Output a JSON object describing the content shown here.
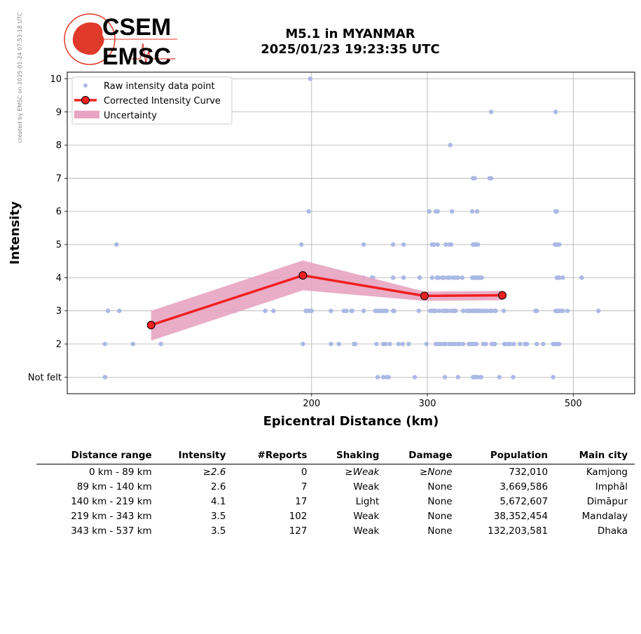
{
  "watermark": "created by EMSC on 2025-01-24 07:53:18 UTC",
  "logo": {
    "line1": "CSEM",
    "line2": "EMSC"
  },
  "title": {
    "line1": "M5.1 in MYANMAR",
    "line2": "2025/01/23 19:23:35 UTC"
  },
  "colors": {
    "raw": "#aab8e4",
    "curve": "#f02020",
    "uncertainty": "#e8a4c2",
    "logo_red": "#e03a2a"
  },
  "chart_data": {
    "type": "scatter",
    "xlabel": "Epicentral Distance (km)",
    "ylabel": "Intensity",
    "x_scale": "log",
    "xlim": [
      85,
      620
    ],
    "ylim": [
      0.5,
      10.2
    ],
    "xticks": [
      200,
      300,
      500
    ],
    "yticks": [
      1,
      2,
      3,
      4,
      5,
      6,
      7,
      8,
      9,
      10
    ],
    "ytick_labels": [
      "Not felt",
      "2",
      "3",
      "4",
      "5",
      "6",
      "7",
      "8",
      "9",
      "10"
    ],
    "grid": true,
    "legend_position": "top-left",
    "legend": [
      "Raw intensity data point",
      "Corrected Intensity Curve",
      "Uncertainty"
    ],
    "raw_points": [
      [
        199,
        10
      ],
      [
        375,
        9
      ],
      [
        470,
        9
      ],
      [
        325,
        8
      ],
      [
        352,
        7
      ],
      [
        354,
        7
      ],
      [
        373,
        7
      ],
      [
        375,
        7
      ],
      [
        198,
        6
      ],
      [
        302,
        6
      ],
      [
        309,
        6
      ],
      [
        311,
        6
      ],
      [
        327,
        6
      ],
      [
        351,
        6
      ],
      [
        357,
        6
      ],
      [
        470,
        6
      ],
      [
        472,
        6
      ],
      [
        101,
        5
      ],
      [
        193,
        5
      ],
      [
        240,
        5
      ],
      [
        266,
        5
      ],
      [
        276,
        5
      ],
      [
        305,
        5
      ],
      [
        307,
        5
      ],
      [
        311,
        5
      ],
      [
        320,
        5
      ],
      [
        324,
        5
      ],
      [
        326,
        5
      ],
      [
        352,
        5
      ],
      [
        354,
        5
      ],
      [
        356,
        5
      ],
      [
        358,
        5
      ],
      [
        469,
        5
      ],
      [
        471,
        5
      ],
      [
        474,
        5
      ],
      [
        476,
        5
      ],
      [
        240,
        4
      ],
      [
        247,
        4
      ],
      [
        248,
        4
      ],
      [
        266,
        4
      ],
      [
        276,
        4
      ],
      [
        292,
        4
      ],
      [
        305,
        4
      ],
      [
        310,
        4
      ],
      [
        312,
        4
      ],
      [
        316,
        4
      ],
      [
        318,
        4
      ],
      [
        322,
        4
      ],
      [
        324,
        4
      ],
      [
        328,
        4
      ],
      [
        331,
        4
      ],
      [
        334,
        4
      ],
      [
        339,
        4
      ],
      [
        351,
        4
      ],
      [
        352,
        4
      ],
      [
        353,
        4
      ],
      [
        355,
        4
      ],
      [
        357,
        4
      ],
      [
        359,
        4
      ],
      [
        361,
        4
      ],
      [
        363,
        4
      ],
      [
        472,
        4
      ],
      [
        474,
        4
      ],
      [
        476,
        4
      ],
      [
        482,
        4
      ],
      [
        515,
        4
      ],
      [
        98,
        3
      ],
      [
        102,
        3
      ],
      [
        153,
        3
      ],
      [
        170,
        3
      ],
      [
        175,
        3
      ],
      [
        196,
        3
      ],
      [
        197,
        3
      ],
      [
        199,
        3
      ],
      [
        200,
        3
      ],
      [
        214,
        3
      ],
      [
        224,
        3
      ],
      [
        226,
        3
      ],
      [
        230,
        3
      ],
      [
        230.5,
        3
      ],
      [
        240,
        3
      ],
      [
        250,
        3
      ],
      [
        252,
        3
      ],
      [
        254,
        3
      ],
      [
        256,
        3
      ],
      [
        258,
        3
      ],
      [
        260,
        3
      ],
      [
        266,
        3
      ],
      [
        267,
        3
      ],
      [
        291,
        3
      ],
      [
        303,
        3
      ],
      [
        305,
        3
      ],
      [
        307,
        3
      ],
      [
        309,
        3
      ],
      [
        313,
        3
      ],
      [
        317,
        3
      ],
      [
        319,
        3
      ],
      [
        320,
        3
      ],
      [
        322,
        3
      ],
      [
        326,
        3
      ],
      [
        329,
        3
      ],
      [
        331,
        3
      ],
      [
        340,
        3
      ],
      [
        344,
        3
      ],
      [
        346,
        3
      ],
      [
        348,
        3
      ],
      [
        350,
        3
      ],
      [
        352,
        3
      ],
      [
        354,
        3
      ],
      [
        356,
        3
      ],
      [
        358,
        3
      ],
      [
        360,
        3
      ],
      [
        361,
        3
      ],
      [
        364,
        3
      ],
      [
        366,
        3
      ],
      [
        367,
        3
      ],
      [
        370,
        3
      ],
      [
        374,
        3
      ],
      [
        376,
        3
      ],
      [
        380,
        3
      ],
      [
        381,
        3
      ],
      [
        392,
        3
      ],
      [
        438,
        3
      ],
      [
        440,
        3
      ],
      [
        470,
        3
      ],
      [
        472,
        3
      ],
      [
        474,
        3
      ],
      [
        476,
        3
      ],
      [
        478,
        3
      ],
      [
        482,
        3
      ],
      [
        490,
        3
      ],
      [
        546,
        3
      ],
      [
        97,
        2
      ],
      [
        107,
        2
      ],
      [
        118,
        2
      ],
      [
        194,
        2
      ],
      [
        214,
        2
      ],
      [
        220,
        2
      ],
      [
        232,
        2
      ],
      [
        233,
        2
      ],
      [
        251,
        2
      ],
      [
        257,
        2
      ],
      [
        259,
        2
      ],
      [
        263,
        2
      ],
      [
        271,
        2
      ],
      [
        275,
        2
      ],
      [
        281,
        2
      ],
      [
        299,
        2
      ],
      [
        309,
        2
      ],
      [
        311,
        2
      ],
      [
        314,
        2
      ],
      [
        317,
        2
      ],
      [
        320,
        2
      ],
      [
        324,
        2
      ],
      [
        327,
        2
      ],
      [
        330,
        2
      ],
      [
        333,
        2
      ],
      [
        336,
        2
      ],
      [
        340,
        2
      ],
      [
        347,
        2
      ],
      [
        350,
        2
      ],
      [
        352,
        2
      ],
      [
        354,
        2
      ],
      [
        356,
        2
      ],
      [
        365,
        2
      ],
      [
        368,
        2
      ],
      [
        376,
        2
      ],
      [
        378,
        2
      ],
      [
        380,
        2
      ],
      [
        393,
        2
      ],
      [
        395,
        2
      ],
      [
        399,
        2
      ],
      [
        401,
        2
      ],
      [
        406,
        2
      ],
      [
        415,
        2
      ],
      [
        422,
        2
      ],
      [
        425,
        2
      ],
      [
        440,
        2
      ],
      [
        450,
        2
      ],
      [
        466,
        2
      ],
      [
        470,
        2
      ],
      [
        472,
        2
      ],
      [
        474,
        2
      ],
      [
        476,
        2
      ],
      [
        97,
        1
      ],
      [
        252,
        1
      ],
      [
        257,
        1
      ],
      [
        260,
        1
      ],
      [
        262,
        1
      ],
      [
        287,
        1
      ],
      [
        319,
        1
      ],
      [
        334,
        1
      ],
      [
        352,
        1
      ],
      [
        354,
        1
      ],
      [
        356,
        1
      ],
      [
        358,
        1
      ],
      [
        362,
        1
      ],
      [
        386,
        1
      ],
      [
        405,
        1
      ],
      [
        466,
        1
      ]
    ],
    "curve": {
      "x": [
        114,
        194,
        297,
        390
      ],
      "y": [
        2.57,
        4.07,
        3.45,
        3.47
      ]
    },
    "band": {
      "x": [
        114,
        194,
        297,
        390
      ],
      "upper": [
        3.0,
        4.52,
        3.58,
        3.6
      ],
      "lower": [
        2.1,
        3.62,
        3.3,
        3.32
      ]
    }
  },
  "table": {
    "headers": [
      "Distance range",
      "Intensity",
      "#Reports",
      "Shaking",
      "Damage",
      "Population",
      "Main city"
    ],
    "rows": [
      [
        "0 km -   89 km",
        "≥2.6",
        "0",
        "≥Weak",
        "≥None",
        "732,010",
        "Kamjong"
      ],
      [
        "89 km -  140 km",
        "2.6",
        "7",
        "Weak",
        "None",
        "3,669,586",
        "Imphāl"
      ],
      [
        "140 km -  219 km",
        "4.1",
        "17",
        "Light",
        "None",
        "5,672,607",
        "Dimāpur"
      ],
      [
        "219 km -  343 km",
        "3.5",
        "102",
        "Weak",
        "None",
        "38,352,454",
        "Mandalay"
      ],
      [
        "343 km -  537 km",
        "3.5",
        "127",
        "Weak",
        "None",
        "132,203,581",
        "Dhaka"
      ]
    ]
  }
}
